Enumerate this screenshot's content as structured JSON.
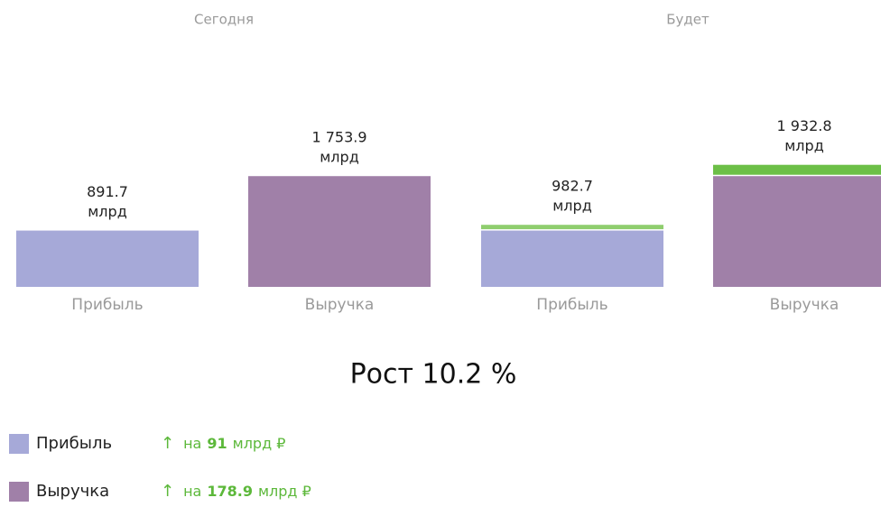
{
  "chart_data": {
    "type": "stacked-bar",
    "groups": [
      "Сегодня",
      "Будет"
    ],
    "categories": [
      "Прибыль",
      "Выручка"
    ],
    "colors": [
      "#a6a9d8",
      "#a080a8"
    ],
    "current": {
      "values": [
        891.7,
        1753.9
      ],
      "value_labels": [
        "891.7",
        "1 753.9"
      ]
    },
    "growth": {
      "values": [
        91,
        178.9
      ],
      "colors": [
        "#8fce6e",
        "#6cbf47"
      ]
    },
    "future_labels": [
      "982.7",
      "1 932.8"
    ],
    "unit": "млрд",
    "growth_title": "Рост 10.2 %",
    "legend": {
      "arrow": "↑",
      "prefix": "на",
      "suffix": "млрд ₽"
    }
  }
}
